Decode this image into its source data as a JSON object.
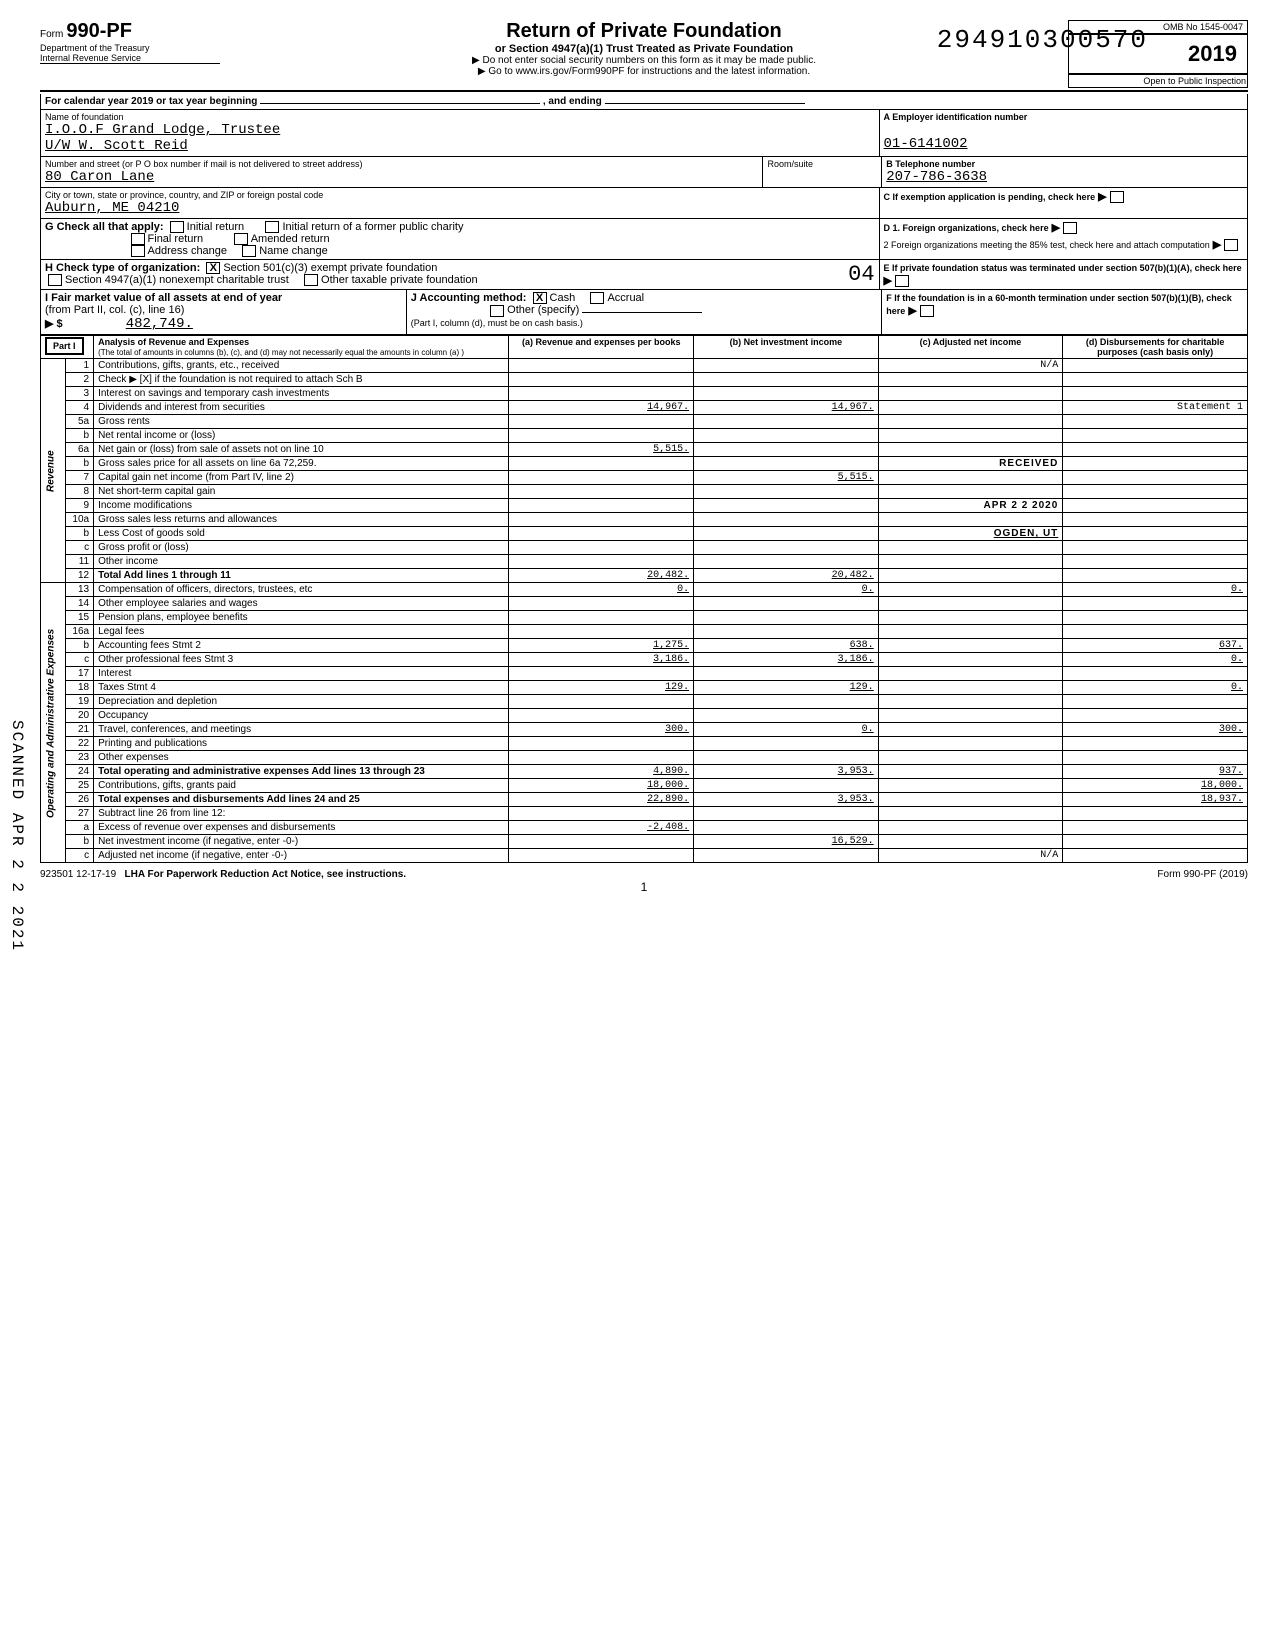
{
  "stamp_id": "294910300570",
  "form": {
    "number": "990-PF",
    "dept": "Department of the Treasury",
    "irs": "Internal Revenue Service",
    "title": "Return of Private Foundation",
    "subtitle": "or Section 4947(a)(1) Trust Treated as Private Foundation",
    "note1": "▶ Do not enter social security numbers on this form as it may be made public.",
    "note2": "▶ Go to www.irs.gov/Form990PF for instructions and the latest information.",
    "omb": "OMB No 1545-0047",
    "year": "2019",
    "inspection": "Open to Public Inspection"
  },
  "calendar": {
    "label": "For calendar year 2019 or tax year beginning",
    "ending": ", and ending"
  },
  "header": {
    "name_label": "Name of foundation",
    "name1": "I.O.O.F Grand Lodge, Trustee",
    "name2": "U/W W. Scott Reid",
    "addr_label": "Number and street (or P O  box number if mail is not delivered to street address)",
    "addr": "80 Caron Lane",
    "city_label": "City or town, state or province, country, and ZIP or foreign postal code",
    "city": "Auburn, ME   04210",
    "room_label": "Room/suite",
    "ein_label": "A  Employer identification number",
    "ein": "01-6141002",
    "phone_label": "B  Telephone number",
    "phone": "207-786-3638",
    "c_label": "C  If exemption application is pending, check here",
    "d1_label": "D  1. Foreign organizations, check here",
    "d2_label": "2  Foreign organizations meeting the 85% test, check here and attach computation",
    "e_label": "E  If private foundation status was terminated under section 507(b)(1)(A), check here",
    "f_label": "F  If the foundation is in a 60-month termination under section 507(b)(1)(B), check here"
  },
  "checks": {
    "g_label": "G  Check all that apply:",
    "initial": "Initial return",
    "initial_former": "Initial return of a former public charity",
    "final": "Final return",
    "amended": "Amended return",
    "addr_change": "Address change",
    "name_change": "Name change",
    "h_label": "H  Check type of organization:",
    "h_501c3": "Section 501(c)(3) exempt private foundation",
    "h_4947": "Section 4947(a)(1) nonexempt charitable trust",
    "h_other": "Other taxable private foundation",
    "i_label": "I  Fair market value of all assets at end of year",
    "i_from": "(from Part II, col. (c), line 16)",
    "i_value": "482,749.",
    "j_label": "J  Accounting method:",
    "j_cash": "Cash",
    "j_accrual": "Accrual",
    "j_other": "Other (specify)",
    "j_note": "(Part I, column (d), must be on cash basis.)",
    "stamp04": "04"
  },
  "part1": {
    "label": "Part I",
    "title": "Analysis of Revenue and Expenses",
    "note": "(The total of amounts in columns (b), (c), and (d) may not necessarily equal the amounts in column (a) )",
    "col_a": "(a) Revenue and expenses per books",
    "col_b": "(b) Net investment income",
    "col_c": "(c) Adjusted net income",
    "col_d": "(d) Disbursements for charitable purposes (cash basis only)",
    "na": "N/A",
    "revenue_label": "Revenue",
    "expense_label": "Operating and Administrative Expenses"
  },
  "lines": [
    {
      "n": "1",
      "desc": "Contributions, gifts, grants, etc., received",
      "a": "",
      "b": "",
      "c": "N/A",
      "d": ""
    },
    {
      "n": "2",
      "desc": "Check ▶ [X] if the foundation is not required to attach Sch  B",
      "a": "",
      "b": "",
      "c": "",
      "d": ""
    },
    {
      "n": "3",
      "desc": "Interest on savings and temporary cash investments",
      "a": "",
      "b": "",
      "c": "",
      "d": ""
    },
    {
      "n": "4",
      "desc": "Dividends and interest from securities",
      "a": "14,967.",
      "b": "14,967.",
      "c": "",
      "d": "Statement 1"
    },
    {
      "n": "5a",
      "desc": "Gross rents",
      "a": "",
      "b": "",
      "c": "",
      "d": ""
    },
    {
      "n": "b",
      "desc": "Net rental income or (loss)",
      "a": "",
      "b": "",
      "c": "",
      "d": ""
    },
    {
      "n": "6a",
      "desc": "Net gain or (loss) from sale of assets not on line 10",
      "a": "5,515.",
      "b": "",
      "c": "",
      "d": ""
    },
    {
      "n": "b",
      "desc": "Gross sales price for all assets on line 6a        72,259.",
      "a": "",
      "b": "",
      "c": "RECEIVED",
      "d": ""
    },
    {
      "n": "7",
      "desc": "Capital gain net income (from Part IV, line 2)",
      "a": "",
      "b": "5,515.",
      "c": "",
      "d": ""
    },
    {
      "n": "8",
      "desc": "Net short-term capital gain",
      "a": "",
      "b": "",
      "c": "",
      "d": ""
    },
    {
      "n": "9",
      "desc": "Income modifications",
      "a": "",
      "b": "",
      "c": "APR 2 2 2020",
      "d": ""
    },
    {
      "n": "10a",
      "desc": "Gross sales less returns and allowances",
      "a": "",
      "b": "",
      "c": "",
      "d": ""
    },
    {
      "n": "b",
      "desc": "Less  Cost of goods sold",
      "a": "",
      "b": "",
      "c": "OGDEN, UT",
      "d": ""
    },
    {
      "n": "c",
      "desc": "Gross profit or (loss)",
      "a": "",
      "b": "",
      "c": "",
      "d": ""
    },
    {
      "n": "11",
      "desc": "Other income",
      "a": "",
      "b": "",
      "c": "",
      "d": ""
    },
    {
      "n": "12",
      "desc": "Total  Add lines 1 through 11",
      "a": "20,482.",
      "b": "20,482.",
      "c": "",
      "d": ""
    },
    {
      "n": "13",
      "desc": "Compensation of officers, directors, trustees, etc",
      "a": "0.",
      "b": "0.",
      "c": "",
      "d": "0."
    },
    {
      "n": "14",
      "desc": "Other employee salaries and wages",
      "a": "",
      "b": "",
      "c": "",
      "d": ""
    },
    {
      "n": "15",
      "desc": "Pension plans, employee benefits",
      "a": "",
      "b": "",
      "c": "",
      "d": ""
    },
    {
      "n": "16a",
      "desc": "Legal fees",
      "a": "",
      "b": "",
      "c": "",
      "d": ""
    },
    {
      "n": "b",
      "desc": "Accounting fees                 Stmt 2",
      "a": "1,275.",
      "b": "638.",
      "c": "",
      "d": "637."
    },
    {
      "n": "c",
      "desc": "Other professional fees         Stmt 3",
      "a": "3,186.",
      "b": "3,186.",
      "c": "",
      "d": "0."
    },
    {
      "n": "17",
      "desc": "Interest",
      "a": "",
      "b": "",
      "c": "",
      "d": ""
    },
    {
      "n": "18",
      "desc": "Taxes                           Stmt 4",
      "a": "129.",
      "b": "129.",
      "c": "",
      "d": "0."
    },
    {
      "n": "19",
      "desc": "Depreciation and depletion",
      "a": "",
      "b": "",
      "c": "",
      "d": ""
    },
    {
      "n": "20",
      "desc": "Occupancy",
      "a": "",
      "b": "",
      "c": "",
      "d": ""
    },
    {
      "n": "21",
      "desc": "Travel, conferences, and meetings",
      "a": "300.",
      "b": "0.",
      "c": "",
      "d": "300."
    },
    {
      "n": "22",
      "desc": "Printing and publications",
      "a": "",
      "b": "",
      "c": "",
      "d": ""
    },
    {
      "n": "23",
      "desc": "Other expenses",
      "a": "",
      "b": "",
      "c": "",
      "d": ""
    },
    {
      "n": "24",
      "desc": "Total operating and administrative expenses  Add lines 13 through 23",
      "a": "4,890.",
      "b": "3,953.",
      "c": "",
      "d": "937."
    },
    {
      "n": "25",
      "desc": "Contributions, gifts, grants paid",
      "a": "18,000.",
      "b": "",
      "c": "",
      "d": "18,000."
    },
    {
      "n": "26",
      "desc": "Total expenses and disbursements Add lines 24 and 25",
      "a": "22,890.",
      "b": "3,953.",
      "c": "",
      "d": "18,937."
    },
    {
      "n": "27",
      "desc": "Subtract line 26 from line 12:",
      "a": "",
      "b": "",
      "c": "",
      "d": ""
    },
    {
      "n": "a",
      "desc": "Excess of revenue over expenses and disbursements",
      "a": "-2,408.",
      "b": "",
      "c": "",
      "d": ""
    },
    {
      "n": "b",
      "desc": "Net investment income (if negative, enter -0-)",
      "a": "",
      "b": "16,529.",
      "c": "",
      "d": ""
    },
    {
      "n": "c",
      "desc": "Adjusted net income (if negative, enter -0-)",
      "a": "",
      "b": "",
      "c": "N/A",
      "d": ""
    }
  ],
  "footer": {
    "code": "923501  12-17-19",
    "lha": "LHA  For Paperwork Reduction Act Notice, see instructions.",
    "page": "1",
    "form": "Form 990-PF (2019)"
  },
  "side_scan": "SCANNED  APR 2 2 2021",
  "stamps": {
    "received": "RECEIVED",
    "date": "APR 2 2  2020",
    "ogden": "OGDEN, UT"
  }
}
